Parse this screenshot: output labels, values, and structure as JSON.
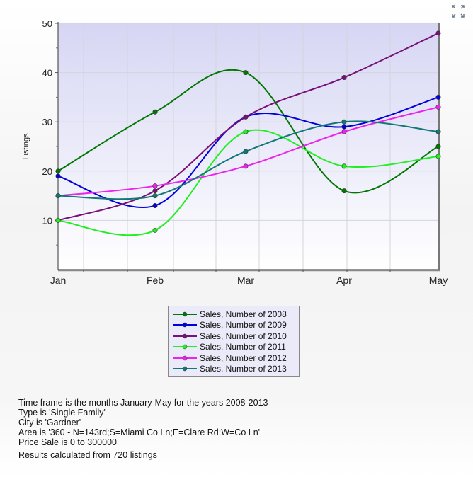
{
  "chart_data": {
    "type": "line",
    "categories": [
      "Jan",
      "Feb",
      "Mar",
      "Apr",
      "May"
    ],
    "ylabel": "Listings",
    "xlabel": "",
    "ylim": [
      0,
      50
    ],
    "yticks": [
      10,
      20,
      30,
      40,
      50
    ],
    "grid": true,
    "legend_position": "bottom",
    "series": [
      {
        "name": "Sales, Number of 2008",
        "color": "#007700",
        "values": [
          20,
          32,
          40,
          16,
          25
        ]
      },
      {
        "name": "Sales, Number of 2009",
        "color": "#0000dd",
        "values": [
          19,
          13,
          31,
          29,
          35
        ]
      },
      {
        "name": "Sales, Number of 2010",
        "color": "#771177",
        "values": [
          10,
          16,
          31,
          39,
          48
        ]
      },
      {
        "name": "Sales, Number of 2011",
        "color": "#22ee22",
        "values": [
          10,
          8,
          28,
          21,
          23
        ]
      },
      {
        "name": "Sales, Number of 2012",
        "color": "#ee22ee",
        "values": [
          15,
          17,
          21,
          28,
          33
        ]
      },
      {
        "name": "Sales, Number of 2013",
        "color": "#117777",
        "values": [
          15,
          15,
          24,
          30,
          28
        ]
      }
    ]
  },
  "info": {
    "lines": [
      "Time frame is the months January-May for the years 2008-2013",
      "Type is 'Single Family'",
      "City is 'Gardner'",
      "Area is '360 - N=143rd;S=Miami Co Ln;E=Clare Rd;W=Co Ln'",
      "Price Sale is 0 to 300000"
    ],
    "results": "Results calculated from 720 listings"
  },
  "icons": {
    "expand": "expand-icon"
  }
}
